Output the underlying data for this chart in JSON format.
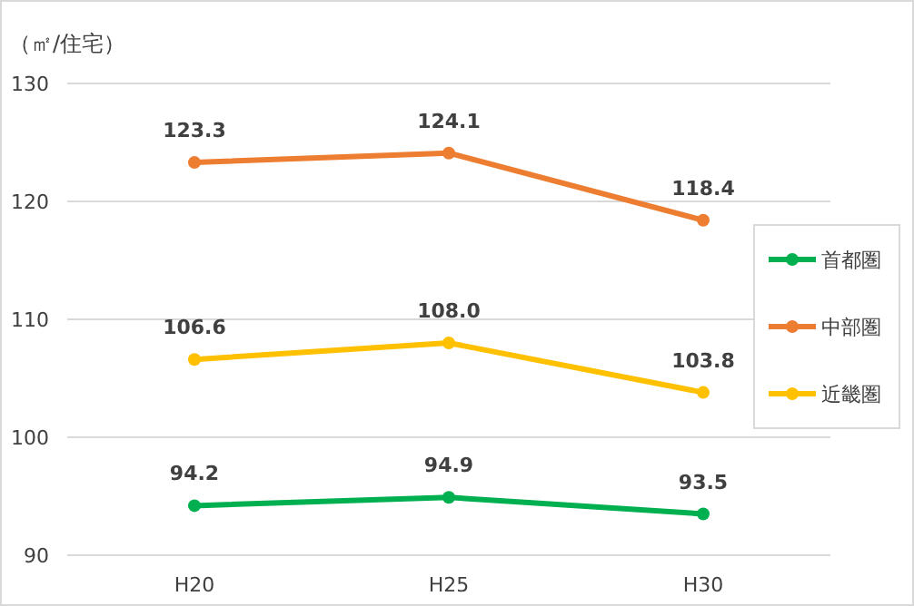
{
  "chart_data": {
    "type": "line",
    "ylabel": "（㎡/住宅）",
    "categories": [
      "H20",
      "H25",
      "H30"
    ],
    "series": [
      {
        "name": "首都圏",
        "color": "#00b050",
        "values": [
          94.2,
          94.9,
          93.5
        ],
        "value_labels": [
          "94.2",
          "94.9",
          "93.5"
        ]
      },
      {
        "name": "中部圏",
        "color": "#ed7d31",
        "values": [
          123.3,
          124.1,
          118.4
        ],
        "value_labels": [
          "123.3",
          "124.1",
          "118.4"
        ]
      },
      {
        "name": "近畿圏",
        "color": "#ffc000",
        "values": [
          106.6,
          108.0,
          103.8
        ],
        "value_labels": [
          "106.6",
          "108.0",
          "103.8"
        ]
      }
    ],
    "ylim": [
      90,
      130
    ],
    "yticks": [
      90,
      100,
      110,
      120,
      130
    ],
    "grid": "y",
    "legend": "right",
    "marker": "circle",
    "line_style": "solid"
  }
}
